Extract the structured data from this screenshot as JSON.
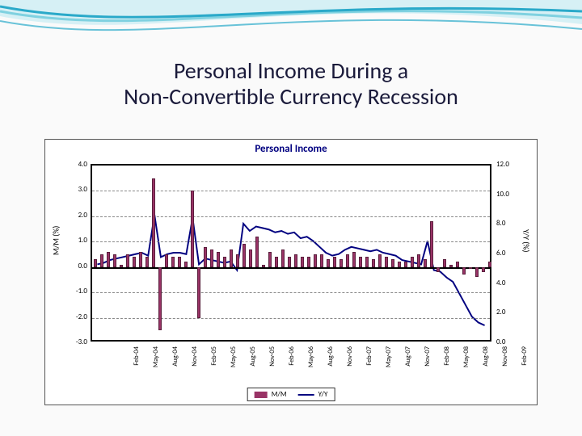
{
  "slide": {
    "title_line1": "Personal Income During a",
    "title_line2": "Non-Convertible Currency Recession",
    "title_color": "#1a1a3a",
    "title_fontsize": 28,
    "wave_colors": [
      "#2aa9c9",
      "#7fd1e0",
      "#d6f0f5"
    ]
  },
  "chart": {
    "type": "bar+line",
    "title": "Personal Income",
    "title_color": "#000080",
    "title_fontsize": 13,
    "left_axis": {
      "label": "M/M (%)",
      "min": -3.0,
      "max": 4.0,
      "ticks": [
        -3.0,
        -2.0,
        -1.0,
        0.0,
        1.0,
        2.0,
        3.0,
        4.0
      ]
    },
    "right_axis": {
      "label": "Y/Y (%)",
      "min": 0.0,
      "max": 12.0,
      "ticks": [
        0.0,
        2.0,
        4.0,
        6.0,
        8.0,
        10.0,
        12.0
      ]
    },
    "grid_color": "#888888",
    "border_color": "#000000",
    "background_color": "#ffffff",
    "bar_color": "#993366",
    "line_color": "#000080",
    "line_width": 2,
    "x_labels": [
      "Feb-04",
      "May-04",
      "Aug-04",
      "Nov-04",
      "Feb-05",
      "May-05",
      "Aug-05",
      "Nov-05",
      "Feb-06",
      "May-06",
      "Aug-06",
      "Nov-06",
      "Feb-07",
      "May-07",
      "Aug-07",
      "Nov-07",
      "Feb-08",
      "May-08",
      "Aug-08",
      "Nov-08",
      "Feb-09"
    ],
    "x_label_every": 3,
    "mm_values": [
      0.3,
      0.5,
      0.6,
      0.5,
      0.1,
      0.5,
      0.4,
      0.6,
      0.4,
      3.5,
      -2.5,
      0.5,
      0.4,
      0.4,
      0.2,
      3.0,
      -2.0,
      0.8,
      0.7,
      0.6,
      0.4,
      0.7,
      0.5,
      0.9,
      0.7,
      1.2,
      0.1,
      0.6,
      0.4,
      0.7,
      0.4,
      0.5,
      0.4,
      0.4,
      0.5,
      0.5,
      0.3,
      0.4,
      0.3,
      0.5,
      0.6,
      0.4,
      0.4,
      0.3,
      0.5,
      0.4,
      0.3,
      0.2,
      0.2,
      0.4,
      0.5,
      0.3,
      1.8,
      -0.2,
      0.3,
      0.1,
      0.2,
      -0.3,
      0.0,
      -0.4,
      -0.2,
      0.2
    ],
    "yy_values": [
      5.2,
      5.3,
      5.5,
      5.6,
      5.7,
      5.8,
      5.9,
      6.0,
      5.8,
      8.6,
      5.7,
      5.9,
      6.0,
      6.0,
      5.9,
      8.4,
      5.2,
      5.6,
      5.5,
      5.4,
      5.3,
      5.4,
      4.8,
      8.0,
      7.5,
      7.8,
      7.7,
      7.6,
      7.4,
      7.5,
      7.3,
      7.4,
      7.0,
      7.1,
      6.8,
      6.4,
      6.0,
      5.8,
      5.9,
      6.2,
      6.4,
      6.3,
      6.2,
      6.1,
      6.2,
      6.0,
      5.9,
      5.8,
      5.5,
      5.4,
      5.3,
      5.2,
      6.8,
      4.8,
      4.7,
      4.3,
      4.0,
      3.2,
      2.4,
      1.6,
      1.2,
      1.0
    ],
    "legend": {
      "mm_label": "M/M",
      "yy_label": "Y/Y"
    }
  }
}
